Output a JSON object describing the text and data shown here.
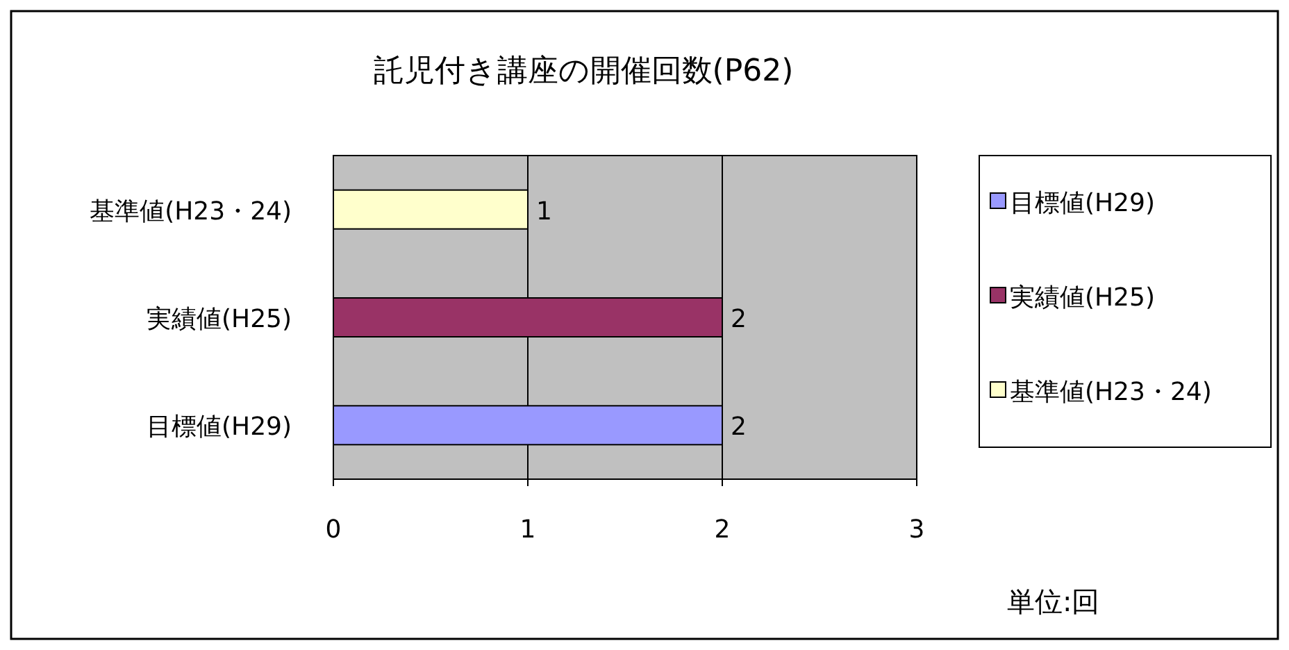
{
  "chart_data": {
    "type": "bar",
    "orientation": "horizontal",
    "title": "託児付き講座の開催回数(P62)",
    "categories": [
      "基準値(H23・24)",
      "実績値(H25)",
      "目標値(H29)"
    ],
    "series": [
      {
        "name": "目標値(H29)",
        "color": "#9999ff",
        "values": [
          null,
          null,
          2
        ]
      },
      {
        "name": "実績値(H25)",
        "color": "#993366",
        "values": [
          null,
          2,
          null
        ]
      },
      {
        "name": "基準値(H23・24)",
        "color": "#ffffcc",
        "values": [
          1,
          null,
          null
        ]
      }
    ],
    "xlim": [
      0,
      3
    ],
    "xticks": [
      0,
      1,
      2,
      3
    ],
    "grid": "x",
    "legend": "right",
    "data_labels": true,
    "annotations": [
      "単位:回"
    ]
  }
}
